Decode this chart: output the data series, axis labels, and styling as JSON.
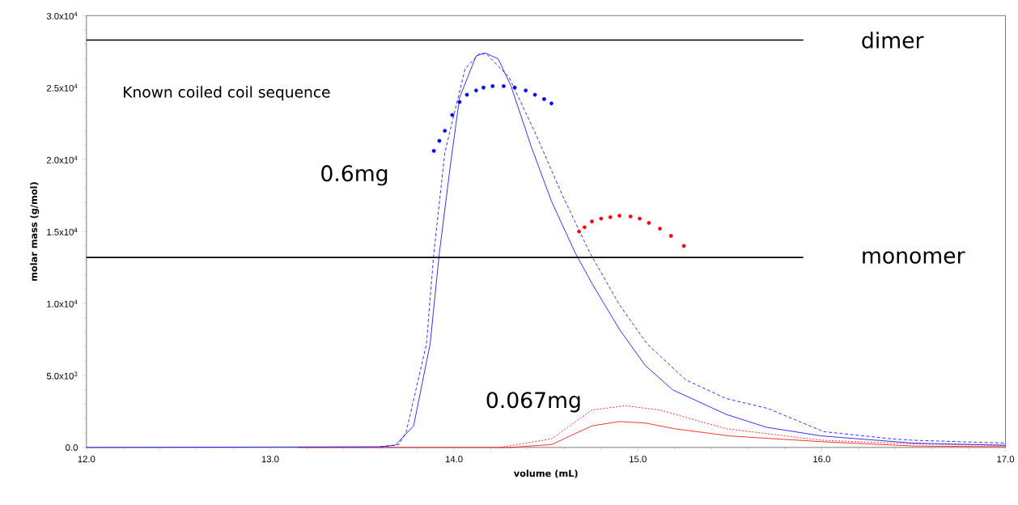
{
  "chart_data": {
    "type": "line",
    "xlabel": "volume (mL)",
    "ylabel": "molar mass (g/mol)",
    "xlim": [
      12,
      17
    ],
    "ylim": [
      0,
      30000
    ],
    "xticks": [
      {
        "value": 12,
        "label": "12.0"
      },
      {
        "value": 13,
        "label": "13.0"
      },
      {
        "value": 14,
        "label": "14.0"
      },
      {
        "value": 15,
        "label": "15.0"
      },
      {
        "value": 16,
        "label": "16.0"
      },
      {
        "value": 17,
        "label": "17.0"
      }
    ],
    "yticks": [
      {
        "value": 0,
        "label": "0.0"
      },
      {
        "value": 5000,
        "label": "5.0x10$^{3}$"
      },
      {
        "value": 10000,
        "label": "1.0x10$^{4}$"
      },
      {
        "value": 15000,
        "label": "1.5x10$^{4}$"
      },
      {
        "value": 20000,
        "label": "2.0x10$^{4}$"
      },
      {
        "value": 25000,
        "label": "2.5x10$^{4}$"
      },
      {
        "value": 30000,
        "label": "3.0x10$^{4}$"
      }
    ],
    "grid": false,
    "series": [
      {
        "color": "#ff0000",
        "line_style": "solid",
        "x": [
          13.15,
          14.3,
          14.53,
          14.75,
          14.9,
          15.04,
          15.2,
          15.5,
          16.0,
          16.5,
          17.0
        ],
        "values": [
          0,
          0,
          200,
          1500,
          1800,
          1700,
          1300,
          800,
          400,
          100,
          50
        ]
      },
      {
        "color": "#ff0000",
        "line_style": "dotted",
        "x": [
          14.25,
          14.53,
          14.75,
          14.93,
          15.12,
          15.48,
          16.0,
          16.5,
          17.0
        ],
        "values": [
          0,
          600,
          2600,
          2900,
          2600,
          1300,
          500,
          250,
          150
        ]
      },
      {
        "color": "#0000ff",
        "line_style": "solid",
        "x": [
          12.0,
          13.6,
          13.68,
          13.78,
          13.87,
          13.92,
          13.98,
          14.03,
          14.12,
          14.17,
          14.24,
          14.31,
          14.42,
          14.53,
          14.66,
          14.75,
          14.9,
          15.04,
          15.19,
          15.48,
          15.7,
          16.0,
          16.5,
          17.0
        ],
        "values": [
          0,
          50,
          150,
          1500,
          7200,
          13500,
          19600,
          24300,
          27200,
          27400,
          27000,
          25100,
          20900,
          17100,
          13500,
          11400,
          8200,
          5700,
          4000,
          2300,
          1400,
          800,
          300,
          150
        ]
      },
      {
        "color": "#0000ff",
        "line_style": "dashed",
        "x": [
          13.6,
          13.7,
          13.74,
          13.85,
          13.89,
          13.95,
          14.06,
          14.14,
          14.18,
          14.3,
          14.44,
          14.59,
          14.74,
          14.9,
          15.05,
          15.26,
          15.48,
          15.71,
          16.01,
          16.38,
          16.5,
          17.0
        ],
        "values": [
          50,
          200,
          1100,
          7200,
          13500,
          20500,
          26300,
          27400,
          27300,
          25700,
          21900,
          17500,
          13500,
          9900,
          7200,
          4700,
          3400,
          2700,
          1100,
          600,
          500,
          300
        ]
      },
      {
        "type": "scatter",
        "color": "#0000ff",
        "marker": "circle",
        "x": [
          13.89,
          13.92,
          13.95,
          13.99,
          14.03,
          14.07,
          14.12,
          14.16,
          14.21,
          14.27,
          14.33,
          14.39,
          14.44,
          14.49,
          14.53
        ],
        "values": [
          20600,
          21300,
          22000,
          23100,
          24000,
          24500,
          24800,
          25000,
          25100,
          25100,
          25000,
          24800,
          24500,
          24200,
          23900
        ]
      },
      {
        "type": "scatter",
        "color": "#ff0000",
        "marker": "circle",
        "x": [
          14.68,
          14.71,
          14.75,
          14.8,
          14.85,
          14.9,
          14.96,
          15.01,
          15.06,
          15.12,
          15.18,
          15.25
        ],
        "values": [
          15000,
          15300,
          15700,
          15900,
          16000,
          16100,
          16050,
          15900,
          15600,
          15200,
          14700,
          14000
        ]
      },
      {
        "name": "dimer",
        "color": "#000000",
        "line_style": "solid",
        "x": [
          12.0,
          15.9
        ],
        "values": [
          28300,
          28300
        ]
      },
      {
        "name": "monomer",
        "color": "#000000",
        "line_style": "solid",
        "x": [
          12.0,
          15.9
        ],
        "values": [
          13200,
          13200
        ]
      }
    ],
    "annotations": [
      "Known coiled coil sequence",
      "0.6mg",
      "0.067mg"
    ]
  }
}
